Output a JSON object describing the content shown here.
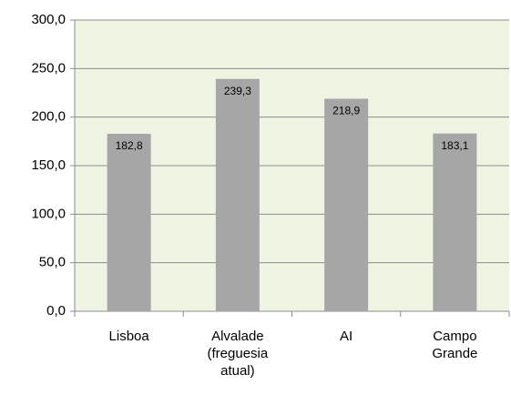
{
  "chart_data": {
    "type": "bar",
    "categories": [
      "Lisboa",
      "Alvalade (freguesia atual)",
      "AI",
      "Campo Grande"
    ],
    "values": [
      182.8,
      239.3,
      218.9,
      183.1
    ],
    "value_labels": [
      "182,8",
      "239,3",
      "218,9",
      "183,1"
    ],
    "color": "#a6a6a6",
    "ylim": [
      0,
      300
    ],
    "yticks": [
      {
        "value": 0,
        "label": "0,0"
      },
      {
        "value": 50,
        "label": "50,0"
      },
      {
        "value": 100,
        "label": "100,0"
      },
      {
        "value": 150,
        "label": "150,0"
      },
      {
        "value": 200,
        "label": "200,0"
      },
      {
        "value": 250,
        "label": "250,0"
      },
      {
        "value": 300,
        "label": "300,0"
      }
    ],
    "grid": true
  }
}
